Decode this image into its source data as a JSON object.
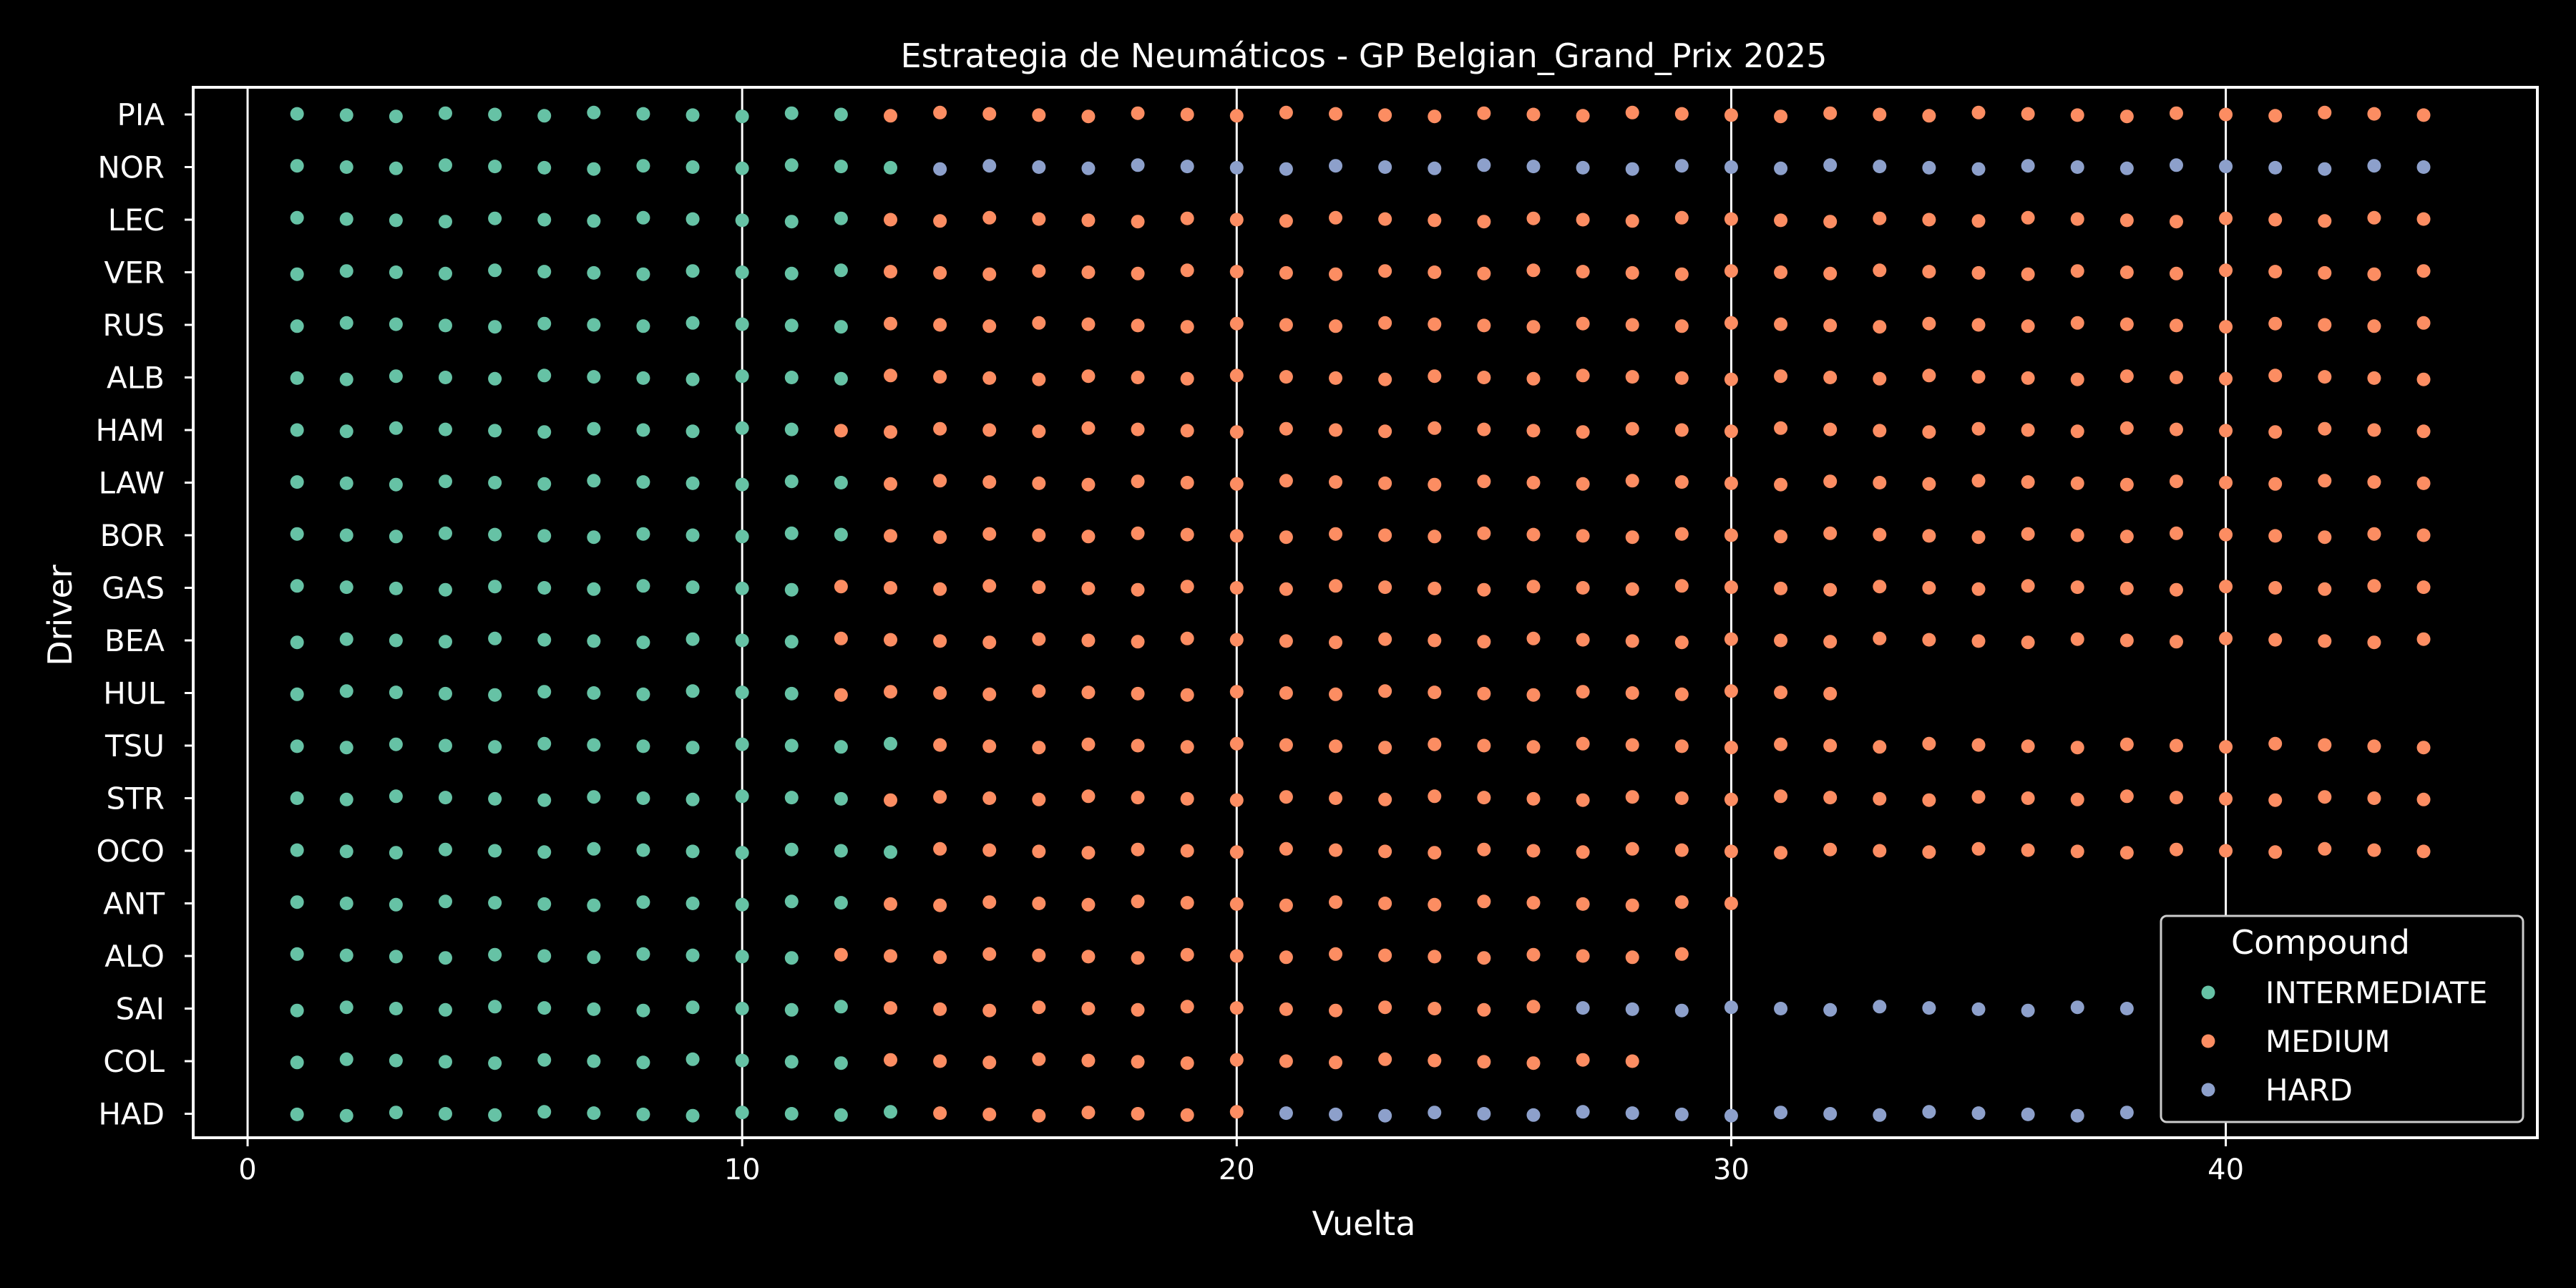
{
  "colors": {
    "background": "#000000",
    "foreground": "#ffffff",
    "INTERMEDIATE": "#66c2a5",
    "MEDIUM": "#fc8d62",
    "HARD": "#8da0cb"
  },
  "chart_data": {
    "type": "scatter",
    "title": "Estrategia de Neumáticos - GP Belgian_Grand_Prix 2025",
    "xlabel": "Vuelta",
    "ylabel": "Driver",
    "xlim": [
      -1.1,
      46.3
    ],
    "x_ticks": [
      0,
      10,
      20,
      30,
      40
    ],
    "grid": "vertical",
    "legend": {
      "title": "Compound",
      "placement": "lower-right",
      "entries": [
        "INTERMEDIATE",
        "MEDIUM",
        "HARD"
      ]
    },
    "drivers": [
      {
        "name": "PIA",
        "stints": [
          {
            "compound": "INTERMEDIATE",
            "from": 1,
            "to": 12
          },
          {
            "compound": "MEDIUM",
            "from": 13,
            "to": 44
          }
        ]
      },
      {
        "name": "NOR",
        "stints": [
          {
            "compound": "INTERMEDIATE",
            "from": 1,
            "to": 13
          },
          {
            "compound": "HARD",
            "from": 14,
            "to": 44
          }
        ]
      },
      {
        "name": "LEC",
        "stints": [
          {
            "compound": "INTERMEDIATE",
            "from": 1,
            "to": 12
          },
          {
            "compound": "MEDIUM",
            "from": 13,
            "to": 44
          }
        ]
      },
      {
        "name": "VER",
        "stints": [
          {
            "compound": "INTERMEDIATE",
            "from": 1,
            "to": 12
          },
          {
            "compound": "MEDIUM",
            "from": 13,
            "to": 44
          }
        ]
      },
      {
        "name": "RUS",
        "stints": [
          {
            "compound": "INTERMEDIATE",
            "from": 1,
            "to": 12
          },
          {
            "compound": "MEDIUM",
            "from": 13,
            "to": 44
          }
        ]
      },
      {
        "name": "ALB",
        "stints": [
          {
            "compound": "INTERMEDIATE",
            "from": 1,
            "to": 12
          },
          {
            "compound": "MEDIUM",
            "from": 13,
            "to": 44
          }
        ]
      },
      {
        "name": "HAM",
        "stints": [
          {
            "compound": "INTERMEDIATE",
            "from": 1,
            "to": 11
          },
          {
            "compound": "MEDIUM",
            "from": 12,
            "to": 44
          }
        ]
      },
      {
        "name": "LAW",
        "stints": [
          {
            "compound": "INTERMEDIATE",
            "from": 1,
            "to": 12
          },
          {
            "compound": "MEDIUM",
            "from": 13,
            "to": 44
          }
        ]
      },
      {
        "name": "BOR",
        "stints": [
          {
            "compound": "INTERMEDIATE",
            "from": 1,
            "to": 12
          },
          {
            "compound": "MEDIUM",
            "from": 13,
            "to": 44
          }
        ]
      },
      {
        "name": "GAS",
        "stints": [
          {
            "compound": "INTERMEDIATE",
            "from": 1,
            "to": 11
          },
          {
            "compound": "MEDIUM",
            "from": 12,
            "to": 44
          }
        ]
      },
      {
        "name": "BEA",
        "stints": [
          {
            "compound": "INTERMEDIATE",
            "from": 1,
            "to": 11
          },
          {
            "compound": "MEDIUM",
            "from": 12,
            "to": 44
          }
        ]
      },
      {
        "name": "HUL",
        "stints": [
          {
            "compound": "INTERMEDIATE",
            "from": 1,
            "to": 11
          },
          {
            "compound": "MEDIUM",
            "from": 12,
            "to": 32
          }
        ]
      },
      {
        "name": "TSU",
        "stints": [
          {
            "compound": "INTERMEDIATE",
            "from": 1,
            "to": 13
          },
          {
            "compound": "MEDIUM",
            "from": 14,
            "to": 44
          }
        ]
      },
      {
        "name": "STR",
        "stints": [
          {
            "compound": "INTERMEDIATE",
            "from": 1,
            "to": 12
          },
          {
            "compound": "MEDIUM",
            "from": 13,
            "to": 44
          }
        ]
      },
      {
        "name": "OCO",
        "stints": [
          {
            "compound": "INTERMEDIATE",
            "from": 1,
            "to": 13
          },
          {
            "compound": "MEDIUM",
            "from": 14,
            "to": 44
          }
        ]
      },
      {
        "name": "ANT",
        "stints": [
          {
            "compound": "INTERMEDIATE",
            "from": 1,
            "to": 12
          },
          {
            "compound": "MEDIUM",
            "from": 13,
            "to": 30
          }
        ]
      },
      {
        "name": "ALO",
        "stints": [
          {
            "compound": "INTERMEDIATE",
            "from": 1,
            "to": 11
          },
          {
            "compound": "MEDIUM",
            "from": 12,
            "to": 29
          }
        ]
      },
      {
        "name": "SAI",
        "stints": [
          {
            "compound": "INTERMEDIATE",
            "from": 1,
            "to": 12
          },
          {
            "compound": "MEDIUM",
            "from": 13,
            "to": 26
          },
          {
            "compound": "HARD",
            "from": 27,
            "to": 44
          }
        ]
      },
      {
        "name": "COL",
        "stints": [
          {
            "compound": "INTERMEDIATE",
            "from": 1,
            "to": 12
          },
          {
            "compound": "MEDIUM",
            "from": 13,
            "to": 28
          }
        ]
      },
      {
        "name": "HAD",
        "stints": [
          {
            "compound": "INTERMEDIATE",
            "from": 1,
            "to": 13
          },
          {
            "compound": "MEDIUM",
            "from": 14,
            "to": 20
          },
          {
            "compound": "HARD",
            "from": 21,
            "to": 43
          }
        ]
      }
    ]
  }
}
